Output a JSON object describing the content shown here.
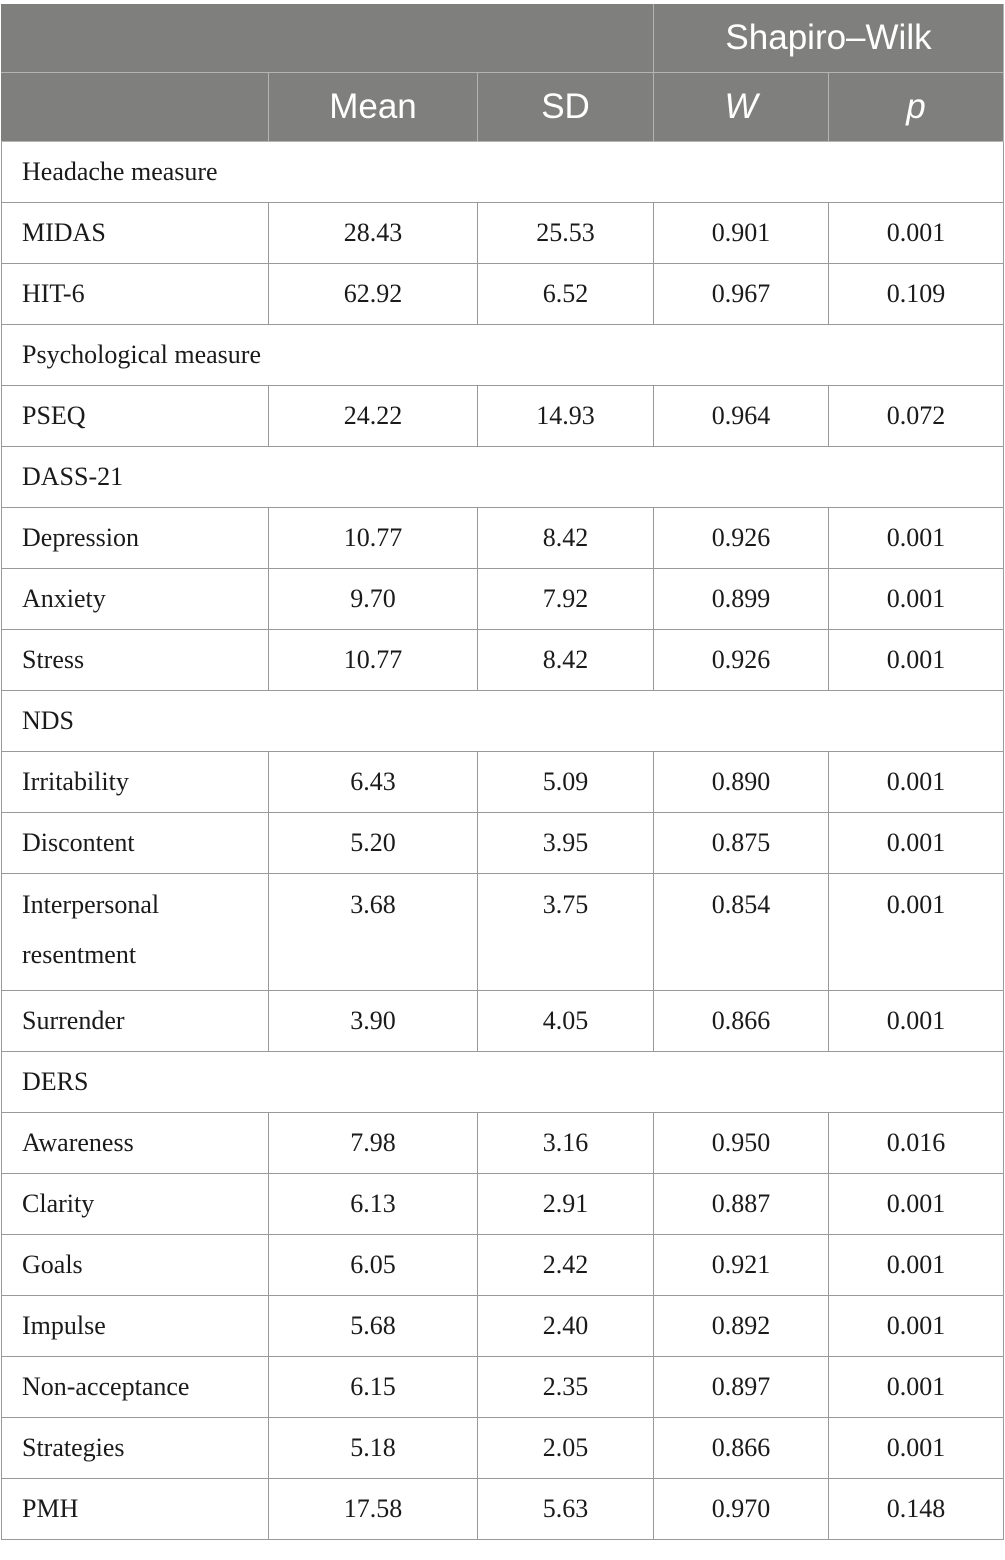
{
  "header": {
    "group_label": "Shapiro–Wilk",
    "columns": [
      "",
      "Mean",
      "SD",
      "W",
      "p"
    ]
  },
  "rows": [
    {
      "type": "section",
      "label": "Headache measure"
    },
    {
      "type": "data",
      "label": "MIDAS",
      "mean": "28.43",
      "sd": "25.53",
      "w": "0.901",
      "p": "0.001"
    },
    {
      "type": "data",
      "label": "HIT-6",
      "mean": "62.92",
      "sd": "6.52",
      "w": "0.967",
      "p": "0.109"
    },
    {
      "type": "section",
      "label": "Psychological measure"
    },
    {
      "type": "data",
      "label": "PSEQ",
      "mean": "24.22",
      "sd": "14.93",
      "w": "0.964",
      "p": "0.072"
    },
    {
      "type": "section",
      "label": "DASS-21"
    },
    {
      "type": "data",
      "label": "Depression",
      "mean": "10.77",
      "sd": "8.42",
      "w": "0.926",
      "p": "0.001"
    },
    {
      "type": "data",
      "label": "Anxiety",
      "mean": "9.70",
      "sd": "7.92",
      "w": "0.899",
      "p": "0.001"
    },
    {
      "type": "data",
      "label": "Stress",
      "mean": "10.77",
      "sd": "8.42",
      "w": "0.926",
      "p": "0.001"
    },
    {
      "type": "section",
      "label": "NDS"
    },
    {
      "type": "data",
      "label": "Irritability",
      "mean": "6.43",
      "sd": "5.09",
      "w": "0.890",
      "p": "0.001"
    },
    {
      "type": "data",
      "label": "Discontent",
      "mean": "5.20",
      "sd": "3.95",
      "w": "0.875",
      "p": "0.001"
    },
    {
      "type": "data",
      "label": "Interpersonal resentment",
      "mean": "3.68",
      "sd": "3.75",
      "w": "0.854",
      "p": "0.001",
      "tall": true
    },
    {
      "type": "data",
      "label": "Surrender",
      "mean": "3.90",
      "sd": "4.05",
      "w": "0.866",
      "p": "0.001"
    },
    {
      "type": "section",
      "label": "DERS"
    },
    {
      "type": "data",
      "label": "Awareness",
      "mean": "7.98",
      "sd": "3.16",
      "w": "0.950",
      "p": "0.016"
    },
    {
      "type": "data",
      "label": "Clarity",
      "mean": "6.13",
      "sd": "2.91",
      "w": "0.887",
      "p": "0.001"
    },
    {
      "type": "data",
      "label": "Goals",
      "mean": "6.05",
      "sd": "2.42",
      "w": "0.921",
      "p": "0.001"
    },
    {
      "type": "data",
      "label": "Impulse",
      "mean": "5.68",
      "sd": "2.40",
      "w": "0.892",
      "p": "0.001"
    },
    {
      "type": "data",
      "label": "Non-acceptance",
      "mean": "6.15",
      "sd": "2.35",
      "w": "0.897",
      "p": "0.001"
    },
    {
      "type": "data",
      "label": "Strategies",
      "mean": "5.18",
      "sd": "2.05",
      "w": "0.866",
      "p": "0.001"
    },
    {
      "type": "data",
      "label": "PMH",
      "mean": "17.58",
      "sd": "5.63",
      "w": "0.970",
      "p": "0.148"
    }
  ]
}
